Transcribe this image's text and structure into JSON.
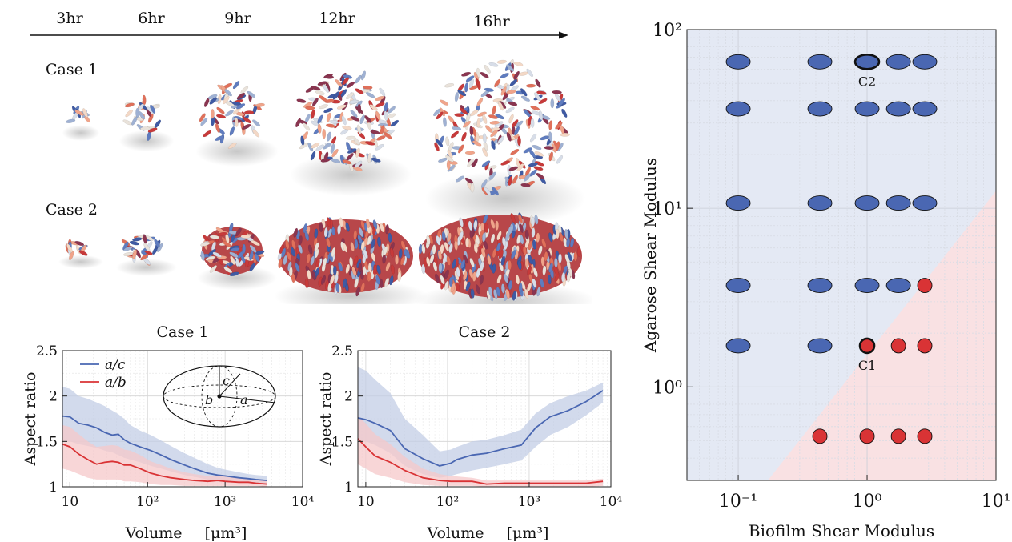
{
  "timeline": {
    "labels": [
      "3hr",
      "6hr",
      "9hr",
      "12hr",
      "16hr"
    ]
  },
  "render_rows": [
    {
      "label": "Case 1",
      "shape": "sphere"
    },
    {
      "label": "Case 2",
      "shape": "flattened-ellipsoid"
    }
  ],
  "colors": {
    "blue": "#4a67b2",
    "red": "#d93335",
    "blue_band": "#c3cde6",
    "red_band": "#f5c8ca",
    "blue_region": "#e4e9f4",
    "red_region": "#f9e1e3"
  },
  "inset": {
    "labels": [
      "c",
      "b",
      "a"
    ]
  },
  "chart_data": [
    {
      "type": "line",
      "title": "Case 1",
      "xlabel": "Volume",
      "xunit": "[μm³]",
      "ylabel": "Aspect ratio",
      "xscale": "log",
      "xlim": [
        8,
        10000
      ],
      "ylim": [
        1,
        2.5
      ],
      "xticks": [
        "10",
        "10²",
        "10³",
        "10⁴"
      ],
      "yticks": [
        "1",
        "1.5",
        "2",
        "2.5"
      ],
      "legend": {
        "position": "top-left"
      },
      "series": [
        {
          "name": "a/c",
          "color": "#4a67b2",
          "x": [
            8,
            10,
            13,
            17,
            22,
            28,
            35,
            42,
            50,
            60,
            80,
            110,
            150,
            200,
            300,
            400,
            600,
            800,
            1000,
            1500,
            2000,
            2500,
            3500
          ],
          "y": [
            1.78,
            1.77,
            1.7,
            1.68,
            1.65,
            1.6,
            1.57,
            1.58,
            1.52,
            1.48,
            1.44,
            1.4,
            1.35,
            1.3,
            1.24,
            1.2,
            1.15,
            1.13,
            1.12,
            1.1,
            1.09,
            1.08,
            1.07
          ],
          "band_low": [
            1.5,
            1.5,
            1.47,
            1.45,
            1.43,
            1.4,
            1.38,
            1.35,
            1.32,
            1.3,
            1.27,
            1.23,
            1.2,
            1.17,
            1.13,
            1.11,
            1.08,
            1.07,
            1.06,
            1.05,
            1.04,
            1.03,
            1.02
          ],
          "band_high": [
            2.1,
            2.08,
            2.0,
            1.97,
            1.93,
            1.89,
            1.84,
            1.8,
            1.75,
            1.68,
            1.62,
            1.57,
            1.51,
            1.45,
            1.37,
            1.32,
            1.25,
            1.21,
            1.19,
            1.16,
            1.14,
            1.13,
            1.12
          ]
        },
        {
          "name": "a/b",
          "color": "#d93335",
          "x": [
            8,
            10,
            13,
            17,
            22,
            28,
            35,
            42,
            50,
            60,
            80,
            110,
            150,
            200,
            300,
            400,
            600,
            800,
            1000,
            1500,
            2000,
            2500,
            3500
          ],
          "y": [
            1.47,
            1.44,
            1.36,
            1.3,
            1.25,
            1.27,
            1.28,
            1.27,
            1.24,
            1.24,
            1.2,
            1.15,
            1.12,
            1.1,
            1.08,
            1.07,
            1.06,
            1.07,
            1.06,
            1.05,
            1.05,
            1.04,
            1.03
          ],
          "band_low": [
            1.2,
            1.18,
            1.14,
            1.1,
            1.08,
            1.08,
            1.08,
            1.08,
            1.06,
            1.06,
            1.05,
            1.03,
            1.02,
            1.02,
            1.01,
            1.01,
            1.01,
            1.01,
            1.01,
            1.01,
            1.01,
            1.01,
            1.0
          ],
          "band_high": [
            1.68,
            1.66,
            1.58,
            1.5,
            1.44,
            1.45,
            1.46,
            1.45,
            1.41,
            1.4,
            1.35,
            1.28,
            1.24,
            1.2,
            1.16,
            1.14,
            1.12,
            1.12,
            1.11,
            1.1,
            1.09,
            1.08,
            1.07
          ]
        }
      ]
    },
    {
      "type": "line",
      "title": "Case 2",
      "xlabel": "Volume",
      "xunit": "[μm³]",
      "ylabel": "Aspect ratio",
      "xscale": "log",
      "xlim": [
        8,
        10000
      ],
      "ylim": [
        1,
        2.5
      ],
      "xticks": [
        "10",
        "10²",
        "10³",
        "10⁴"
      ],
      "yticks": [
        "1",
        "1.5",
        "2",
        "2.5"
      ],
      "series": [
        {
          "name": "a/c",
          "color": "#4a67b2",
          "x": [
            8,
            10,
            13,
            20,
            30,
            50,
            80,
            110,
            130,
            200,
            300,
            500,
            800,
            1200,
            1800,
            3000,
            5000,
            8000
          ],
          "y": [
            1.76,
            1.74,
            1.7,
            1.62,
            1.42,
            1.31,
            1.23,
            1.26,
            1.3,
            1.35,
            1.37,
            1.42,
            1.46,
            1.65,
            1.77,
            1.84,
            1.94,
            2.06
          ],
          "band_low": [
            1.52,
            1.5,
            1.46,
            1.37,
            1.23,
            1.14,
            1.1,
            1.12,
            1.14,
            1.18,
            1.21,
            1.25,
            1.29,
            1.44,
            1.57,
            1.66,
            1.79,
            1.93
          ],
          "band_high": [
            2.32,
            2.28,
            2.18,
            2.03,
            1.75,
            1.57,
            1.39,
            1.41,
            1.44,
            1.5,
            1.52,
            1.57,
            1.63,
            1.81,
            1.92,
            2.0,
            2.06,
            2.15
          ]
        },
        {
          "name": "a/b",
          "color": "#d93335",
          "x": [
            8,
            10,
            13,
            20,
            30,
            50,
            80,
            110,
            200,
            300,
            500,
            800,
            1500,
            3000,
            5000,
            8000
          ],
          "y": [
            1.53,
            1.44,
            1.34,
            1.27,
            1.18,
            1.1,
            1.07,
            1.06,
            1.06,
            1.03,
            1.04,
            1.04,
            1.04,
            1.04,
            1.04,
            1.06
          ],
          "band_low": [
            1.25,
            1.2,
            1.14,
            1.1,
            1.05,
            1.02,
            1.01,
            1.01,
            1.01,
            1.0,
            1.0,
            1.0,
            1.0,
            1.0,
            1.0,
            1.01
          ],
          "band_high": [
            1.78,
            1.7,
            1.58,
            1.47,
            1.33,
            1.2,
            1.14,
            1.12,
            1.1,
            1.07,
            1.07,
            1.07,
            1.07,
            1.07,
            1.07,
            1.09
          ]
        }
      ]
    },
    {
      "type": "scatter",
      "xlabel": "Biofilm Shear Modulus",
      "ylabel": "Agarose Shear Modulus",
      "xscale": "log",
      "yscale": "log",
      "xlim": [
        0.04,
        10
      ],
      "ylim": [
        0.3,
        100
      ],
      "xticks": [
        "10⁻¹",
        "10⁰",
        "10¹"
      ],
      "yticks": [
        "10⁰",
        "10¹",
        "10²"
      ],
      "regions": [
        {
          "name": "blue",
          "color": "#e4e9f4"
        },
        {
          "name": "red",
          "color": "#f9e1e3",
          "boundary": [
            [
              0.17,
              0.3
            ],
            [
              10,
              12.5
            ]
          ]
        }
      ],
      "series": [
        {
          "name": "ellipsoid",
          "color": "#4a67b2",
          "points": [
            [
              0.1,
              66
            ],
            [
              0.43,
              66
            ],
            [
              1.0,
              66
            ],
            [
              1.75,
              66
            ],
            [
              2.8,
              66
            ],
            [
              0.1,
              36
            ],
            [
              0.43,
              36
            ],
            [
              1.0,
              36
            ],
            [
              1.75,
              36
            ],
            [
              2.8,
              36
            ],
            [
              0.1,
              10.7
            ],
            [
              0.43,
              10.7
            ],
            [
              1.0,
              10.7
            ],
            [
              1.75,
              10.7
            ],
            [
              2.8,
              10.7
            ],
            [
              0.1,
              3.7
            ],
            [
              0.43,
              3.7
            ],
            [
              1.0,
              3.7
            ],
            [
              1.75,
              3.7
            ],
            [
              0.1,
              1.7
            ],
            [
              0.43,
              1.7
            ]
          ]
        },
        {
          "name": "sphere",
          "color": "#d93335",
          "points": [
            [
              2.8,
              3.7
            ],
            [
              1.0,
              1.7
            ],
            [
              1.75,
              1.7
            ],
            [
              2.8,
              1.7
            ],
            [
              0.43,
              0.53
            ],
            [
              1.0,
              0.53
            ],
            [
              1.75,
              0.53
            ],
            [
              2.8,
              0.53
            ]
          ]
        }
      ],
      "annotations": [
        {
          "text": "C2",
          "x": 1.0,
          "y": 66,
          "marker": "ellipse"
        },
        {
          "text": "C1",
          "x": 1.0,
          "y": 1.7,
          "marker": "circle"
        }
      ]
    }
  ]
}
